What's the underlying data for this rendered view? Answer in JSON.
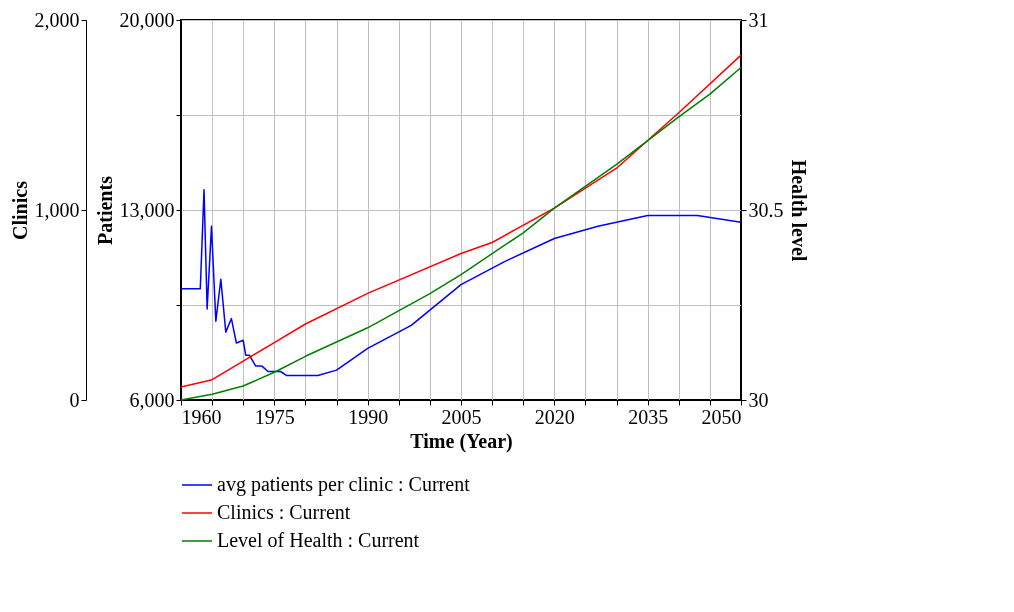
{
  "chart_data": {
    "type": "line",
    "xlabel": "Time (Year)",
    "ylabel": "Patients",
    "y2label": "Clinics",
    "y3label": "Health level",
    "xlim": [
      1960,
      2050
    ],
    "xticks": [
      1960,
      {
        "value": 1965,
        "label": null
      },
      {
        "value": 1970,
        "label": null
      },
      1975,
      {
        "value": 1980,
        "label": null
      },
      {
        "value": 1985,
        "label": null
      },
      1990,
      {
        "value": 1995,
        "label": null
      },
      {
        "value": 2000,
        "label": null
      },
      2005,
      {
        "value": 2010,
        "label": null
      },
      {
        "value": 2015,
        "label": null
      },
      2020,
      {
        "value": 2025,
        "label": null
      },
      {
        "value": 2030,
        "label": null
      },
      2035,
      {
        "value": 2040,
        "label": null
      },
      {
        "value": 2045,
        "label": null
      },
      2050
    ],
    "ylim": [
      6000,
      20000
    ],
    "yticks": [
      {
        "value": 6000,
        "label": "6,000"
      },
      {
        "value": 9500,
        "label": null
      },
      {
        "value": 13000,
        "label": "13,000"
      },
      {
        "value": 16500,
        "label": null
      },
      {
        "value": 20000,
        "label": "20,000"
      }
    ],
    "y2lim": [
      0,
      2000
    ],
    "y2ticks": [
      0,
      {
        "value": 1000,
        "label": "1,000"
      },
      {
        "value": 2000,
        "label": "2,000"
      }
    ],
    "y3lim": [
      30,
      31
    ],
    "y3ticks": [
      30,
      30.5,
      31
    ],
    "grid": true,
    "legend": "bottom",
    "marker": "none",
    "line_style": "solid",
    "series": [
      {
        "name": "avg patients per clinic : Current",
        "color": "#0000ff",
        "axis": "y",
        "x": [
          1960,
          1963.1,
          1963.7,
          1964.2,
          1964.9,
          1965.6,
          1966.4,
          1967.2,
          1968.1,
          1968.9,
          1970,
          1970.4,
          1971,
          1972,
          1973,
          1974,
          1976,
          1977,
          1982,
          1985,
          1990,
          1997,
          2005,
          2012,
          2020,
          2027,
          2035,
          2043,
          2050
        ],
        "values": [
          10100,
          10100,
          13750,
          9350,
          12400,
          8900,
          10450,
          8500,
          9000,
          8100,
          8200,
          7650,
          7650,
          7250,
          7250,
          7050,
          7050,
          6900,
          6900,
          7100,
          7900,
          8750,
          10250,
          11100,
          11950,
          12400,
          12800,
          12800,
          12550
        ]
      },
      {
        "name": "Clinics : Current",
        "color": "#ff0000",
        "axis": "y2",
        "x": [
          1960,
          1965,
          1970,
          1975,
          1980,
          1990,
          2005,
          2010,
          2020,
          2030,
          2040,
          2050
        ],
        "values": [
          68,
          107,
          205,
          302,
          400,
          561,
          771,
          829,
          1010,
          1220,
          1512,
          1815
        ]
      },
      {
        "name": "Level of Health : Current",
        "color": "#008000",
        "axis": "y3",
        "x": [
          1960,
          1965,
          1970,
          1975,
          1980,
          1990,
          2000,
          2005,
          2010,
          2015,
          2020,
          2030,
          2040,
          2045,
          2050
        ],
        "values": [
          30.0,
          30.015,
          30.037,
          30.073,
          30.115,
          30.19,
          30.28,
          30.33,
          30.385,
          30.44,
          30.505,
          30.62,
          30.745,
          30.805,
          30.875
        ]
      }
    ]
  }
}
